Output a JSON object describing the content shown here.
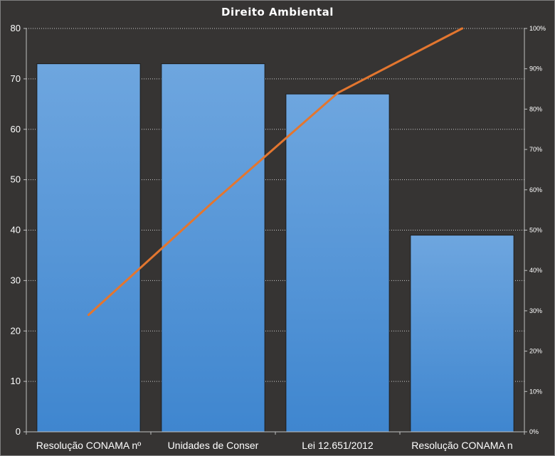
{
  "chart_data": {
    "type": "bar",
    "title": "Direito  Ambiental",
    "categories": [
      "Resolução CONAMA nº",
      "Unidades de Conser",
      "Lei 12.651/2012",
      "Resolução CONAMA n"
    ],
    "series": [
      {
        "type": "bar",
        "values": [
          73,
          73,
          67,
          39
        ],
        "color": "#4f93d8"
      },
      {
        "type": "line",
        "axis": "secondary",
        "values": [
          0.29,
          0.57,
          0.84,
          1.0
        ],
        "color": "#e3762f"
      }
    ],
    "ylim": [
      0,
      80
    ],
    "yticks": [
      0,
      10,
      20,
      30,
      40,
      50,
      60,
      70,
      80
    ],
    "y2lim": [
      0,
      1
    ],
    "y2ticks": [
      "0%",
      "10%",
      "20%",
      "30%",
      "40%",
      "50%",
      "60%",
      "70%",
      "80%",
      "90%",
      "100%"
    ],
    "grid": true,
    "legend": "none"
  }
}
